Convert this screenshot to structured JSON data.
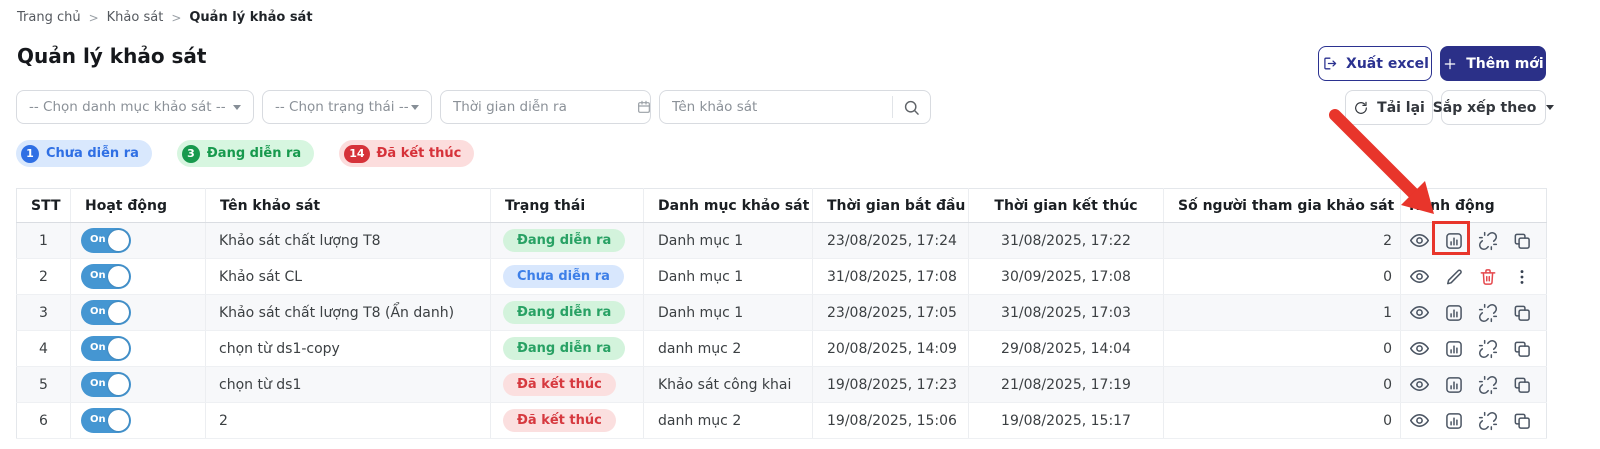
{
  "breadcrumb": {
    "separator": ">",
    "items": [
      "Trang chủ",
      "Khảo sát",
      "Quản lý khảo sát"
    ]
  },
  "page_title": "Quản lý khảo sát",
  "toolbar": {
    "export_label": "Xuất excel",
    "add_label": "Thêm mới",
    "reload_label": "Tải lại",
    "sort_label": "Sắp xếp theo"
  },
  "filters": {
    "category_placeholder": "-- Chọn danh mục khảo sát --",
    "status_placeholder": "-- Chọn trạng thái --",
    "date_placeholder": "Thời gian diễn ra",
    "search_placeholder": "Tên khảo sát"
  },
  "summary_badges": [
    {
      "count": "1",
      "label": "Chưa diễn ra",
      "type": "upcoming"
    },
    {
      "count": "3",
      "label": "Đang diễn ra",
      "type": "active"
    },
    {
      "count": "14",
      "label": "Đã kết thúc",
      "type": "ended"
    }
  ],
  "table": {
    "headers": [
      "STT",
      "Hoạt động",
      "Tên khảo sát",
      "Trạng thái",
      "Danh mục khảo sát",
      "Thời gian bắt đầu",
      "Thời gian kết thúc",
      "Số người tham gia khảo sát",
      "Hành động"
    ],
    "rows": [
      {
        "stt": "1",
        "toggle": "On",
        "name": "Khảo sát chất lượng T8",
        "status": {
          "label": "Đang diễn ra",
          "type": "active"
        },
        "category": "Danh mục 1",
        "start": "23/08/2025, 17:24",
        "end": "31/08/2025, 17:22",
        "participants": "2",
        "actions": [
          "view",
          "stats",
          "unlink",
          "copy"
        ]
      },
      {
        "stt": "2",
        "toggle": "On",
        "name": "Khảo sát CL",
        "status": {
          "label": "Chưa diễn ra",
          "type": "upcoming"
        },
        "category": "Danh mục 1",
        "start": "31/08/2025, 17:08",
        "end": "30/09/2025, 17:08",
        "participants": "0",
        "actions": [
          "view",
          "edit",
          "delete",
          "more"
        ]
      },
      {
        "stt": "3",
        "toggle": "On",
        "name": "Khảo sát chất lượng T8 (Ẩn danh)",
        "status": {
          "label": "Đang diễn ra",
          "type": "active"
        },
        "category": "Danh mục 1",
        "start": "23/08/2025, 17:05",
        "end": "31/08/2025, 17:03",
        "participants": "1",
        "actions": [
          "view",
          "stats",
          "unlink",
          "copy"
        ]
      },
      {
        "stt": "4",
        "toggle": "On",
        "name": "chọn từ ds1-copy",
        "status": {
          "label": "Đang diễn ra",
          "type": "active"
        },
        "category": "danh mục 2",
        "start": "20/08/2025, 14:09",
        "end": "29/08/2025, 14:04",
        "participants": "0",
        "actions": [
          "view",
          "stats",
          "unlink",
          "copy"
        ]
      },
      {
        "stt": "5",
        "toggle": "On",
        "name": "chọn từ ds1",
        "status": {
          "label": "Đã kết thúc",
          "type": "ended"
        },
        "category": "Khảo sát công khai",
        "start": "19/08/2025, 17:23",
        "end": "21/08/2025, 17:19",
        "participants": "0",
        "actions": [
          "view",
          "stats",
          "unlink",
          "copy"
        ]
      },
      {
        "stt": "6",
        "toggle": "On",
        "name": "2",
        "status": {
          "label": "Đã kết thúc",
          "type": "ended"
        },
        "category": "danh mục 2",
        "start": "19/08/2025, 15:06",
        "end": "19/08/2025, 15:17",
        "participants": "0",
        "actions": [
          "view",
          "stats",
          "unlink",
          "copy"
        ]
      }
    ]
  },
  "annotation": {
    "color": "#e8352b",
    "highlighted_row": "1",
    "highlighted_action": "stats"
  },
  "colors": {
    "accent_navy": "#2b3088",
    "toggle_blue": "#4596d2",
    "status_active_text": "#28a164",
    "status_upcoming_text": "#3d7fe8",
    "status_ended_text": "#d6393f"
  }
}
